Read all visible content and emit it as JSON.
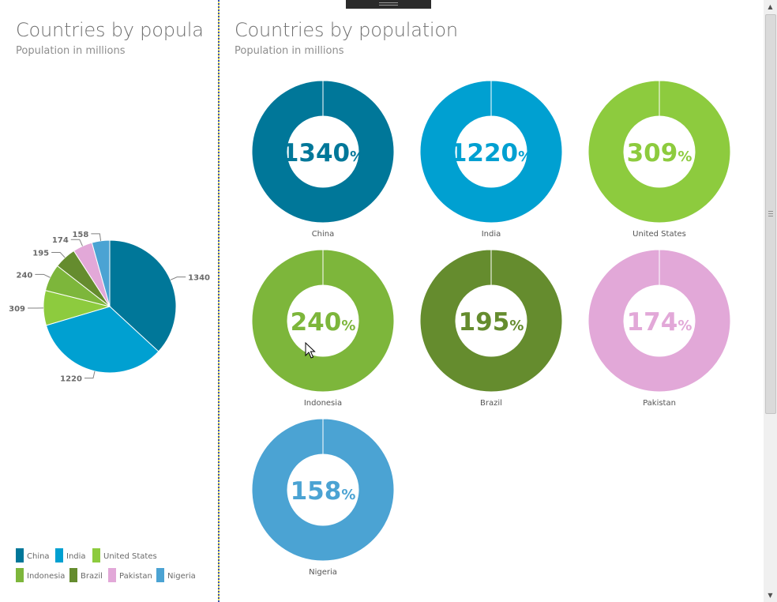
{
  "left_panel": {
    "title": "Countries by population",
    "subtitle": "Population in millions"
  },
  "right_panel": {
    "title": "Countries by population",
    "subtitle": "Population in millions"
  },
  "colors": {
    "China": "#007799",
    "India": "#00a0d1",
    "United States": "#8dcb3e",
    "Indonesia": "#7db63b",
    "Brazil": "#658c2e",
    "Pakistan": "#e2a8d8",
    "Nigeria": "#4ba3d3",
    "donut_track": "#e0e0e0"
  },
  "chart_data": [
    {
      "type": "pie",
      "title": "Countries by population",
      "subtitle": "Population in millions",
      "categories": [
        "China",
        "India",
        "United States",
        "Indonesia",
        "Brazil",
        "Pakistan",
        "Nigeria"
      ],
      "values": [
        1340,
        1220,
        309,
        240,
        195,
        174,
        158
      ],
      "data_labels": [
        "1340",
        "1220",
        "309",
        "240",
        "195",
        "174",
        "158"
      ],
      "legend_position": "bottom"
    },
    {
      "type": "pie",
      "variant": "donut small multiples",
      "title": "Countries by population",
      "subtitle": "Population in millions",
      "panels": [
        {
          "category": "China",
          "value": 1340,
          "label_value": "1340",
          "label_unit": "%"
        },
        {
          "category": "India",
          "value": 1220,
          "label_value": "1220",
          "label_unit": "%"
        },
        {
          "category": "United States",
          "value": 309,
          "label_value": "309",
          "label_unit": "%"
        },
        {
          "category": "Indonesia",
          "value": 240,
          "label_value": "240",
          "label_unit": "%"
        },
        {
          "category": "Brazil",
          "value": 195,
          "label_value": "195",
          "label_unit": "%"
        },
        {
          "category": "Pakistan",
          "value": 174,
          "label_value": "174",
          "label_unit": "%"
        },
        {
          "category": "Nigeria",
          "value": 158,
          "label_value": "158",
          "label_unit": "%"
        }
      ],
      "ring_max_percent": 100
    }
  ]
}
